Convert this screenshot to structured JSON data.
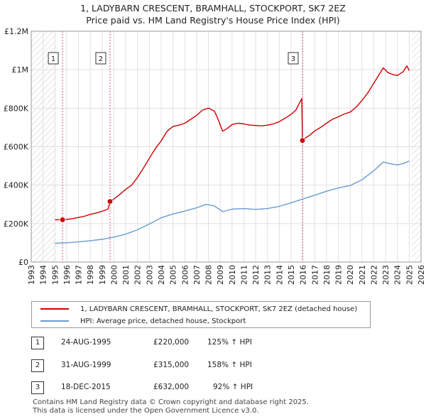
{
  "title_line1": "1, LADYBARN CRESCENT, BRAMHALL, STOCKPORT, SK7 2EZ",
  "title_line2": "Price paid vs. HM Land Registry's House Price Index (HPI)",
  "chart_data": {
    "type": "line",
    "xlim": [
      1993,
      2026
    ],
    "ylim": [
      0,
      1200000
    ],
    "y_ticks": [
      {
        "value": 0,
        "label": "£0"
      },
      {
        "value": 200000,
        "label": "£200K"
      },
      {
        "value": 400000,
        "label": "£400K"
      },
      {
        "value": 600000,
        "label": "£600K"
      },
      {
        "value": 800000,
        "label": "£800K"
      },
      {
        "value": 1000000,
        "label": "£1M"
      },
      {
        "value": 1200000,
        "label": "£1.2M"
      }
    ],
    "x_ticks": [
      1993,
      1994,
      1995,
      1996,
      1997,
      1998,
      1999,
      2000,
      2001,
      2002,
      2003,
      2004,
      2005,
      2006,
      2007,
      2008,
      2009,
      2010,
      2011,
      2012,
      2013,
      2014,
      2015,
      2016,
      2017,
      2018,
      2019,
      2020,
      2021,
      2022,
      2023,
      2024,
      2025,
      2026
    ],
    "grid": true,
    "hatched_ranges": [
      [
        1993,
        1995.1
      ],
      [
        2025.2,
        2026
      ]
    ],
    "series": [
      {
        "name": "1, LADYBARN CRESCENT, BRAMHALL, STOCKPORT, SK7 2EZ (detached house)",
        "color": "#cc0000",
        "points": [
          [
            1995.0,
            220000
          ],
          [
            1995.65,
            220000
          ],
          [
            1996.0,
            222000
          ],
          [
            1996.5,
            226000
          ],
          [
            1997.0,
            232000
          ],
          [
            1997.5,
            238000
          ],
          [
            1998.0,
            248000
          ],
          [
            1998.5,
            255000
          ],
          [
            1999.0,
            264000
          ],
          [
            1999.5,
            275000
          ],
          [
            1999.67,
            315000
          ],
          [
            2000.0,
            328000
          ],
          [
            2000.5,
            352000
          ],
          [
            2001.0,
            378000
          ],
          [
            2001.5,
            400000
          ],
          [
            2002.0,
            440000
          ],
          [
            2002.5,
            488000
          ],
          [
            2003.0,
            540000
          ],
          [
            2003.5,
            590000
          ],
          [
            2004.0,
            630000
          ],
          [
            2004.5,
            680000
          ],
          [
            2005.0,
            705000
          ],
          [
            2005.5,
            712000
          ],
          [
            2006.0,
            722000
          ],
          [
            2006.5,
            742000
          ],
          [
            2007.0,
            762000
          ],
          [
            2007.5,
            790000
          ],
          [
            2008.0,
            800000
          ],
          [
            2008.5,
            785000
          ],
          [
            2008.8,
            745000
          ],
          [
            2009.2,
            680000
          ],
          [
            2009.6,
            695000
          ],
          [
            2010.0,
            715000
          ],
          [
            2010.5,
            722000
          ],
          [
            2011.0,
            718000
          ],
          [
            2011.5,
            712000
          ],
          [
            2012.0,
            710000
          ],
          [
            2012.5,
            708000
          ],
          [
            2013.0,
            712000
          ],
          [
            2013.5,
            718000
          ],
          [
            2014.0,
            730000
          ],
          [
            2014.5,
            748000
          ],
          [
            2015.0,
            768000
          ],
          [
            2015.4,
            790000
          ],
          [
            2015.9,
            850000
          ],
          [
            2015.96,
            632000
          ],
          [
            2016.2,
            645000
          ],
          [
            2016.6,
            660000
          ],
          [
            2017.0,
            682000
          ],
          [
            2017.5,
            700000
          ],
          [
            2018.0,
            722000
          ],
          [
            2018.5,
            742000
          ],
          [
            2019.0,
            755000
          ],
          [
            2019.5,
            770000
          ],
          [
            2020.0,
            780000
          ],
          [
            2020.5,
            805000
          ],
          [
            2021.0,
            840000
          ],
          [
            2021.5,
            880000
          ],
          [
            2022.0,
            930000
          ],
          [
            2022.5,
            980000
          ],
          [
            2022.8,
            1010000
          ],
          [
            2023.2,
            985000
          ],
          [
            2023.6,
            975000
          ],
          [
            2024.0,
            970000
          ],
          [
            2024.5,
            990000
          ],
          [
            2024.8,
            1020000
          ],
          [
            2025.0,
            995000
          ]
        ]
      },
      {
        "name": "HPI: Average price, detached house, Stockport",
        "color": "#6b9bd1",
        "points": [
          [
            1995.0,
            98000
          ],
          [
            1996.0,
            100000
          ],
          [
            1997.0,
            105000
          ],
          [
            1998.0,
            111000
          ],
          [
            1999.0,
            118000
          ],
          [
            2000.0,
            130000
          ],
          [
            2001.0,
            145000
          ],
          [
            2002.0,
            168000
          ],
          [
            2003.0,
            198000
          ],
          [
            2004.0,
            230000
          ],
          [
            2005.0,
            250000
          ],
          [
            2006.0,
            265000
          ],
          [
            2007.0,
            282000
          ],
          [
            2007.8,
            300000
          ],
          [
            2008.5,
            292000
          ],
          [
            2009.2,
            262000
          ],
          [
            2010.0,
            275000
          ],
          [
            2011.0,
            278000
          ],
          [
            2012.0,
            274000
          ],
          [
            2013.0,
            278000
          ],
          [
            2014.0,
            290000
          ],
          [
            2015.0,
            308000
          ],
          [
            2016.0,
            328000
          ],
          [
            2017.0,
            348000
          ],
          [
            2018.0,
            368000
          ],
          [
            2019.0,
            385000
          ],
          [
            2020.0,
            398000
          ],
          [
            2021.0,
            428000
          ],
          [
            2022.0,
            475000
          ],
          [
            2022.8,
            520000
          ],
          [
            2023.5,
            510000
          ],
          [
            2024.0,
            505000
          ],
          [
            2024.5,
            512000
          ],
          [
            2025.0,
            525000
          ]
        ]
      }
    ],
    "sales": [
      {
        "num": "1",
        "x": 1995.65,
        "y": 220000,
        "date": "24-AUG-1995",
        "price": "£220,000",
        "hpi": "125% ↑ HPI"
      },
      {
        "num": "2",
        "x": 1999.67,
        "y": 315000,
        "date": "31-AUG-1999",
        "price": "£315,000",
        "hpi": "158% ↑ HPI"
      },
      {
        "num": "3",
        "x": 2015.96,
        "y": 632000,
        "date": "18-DEC-2015",
        "price": "£632,000",
        "hpi": "92% ↑ HPI"
      }
    ]
  },
  "legend": {
    "property_label": "1, LADYBARN CRESCENT, BRAMHALL, STOCKPORT, SK7 2EZ (detached house)",
    "hpi_label": "HPI: Average price, detached house, Stockport"
  },
  "colors": {
    "property": "#cc0000",
    "hpi": "#6b9bd1"
  },
  "footer_line1": "Contains HM Land Registry data © Crown copyright and database right 2025.",
  "footer_line2": "This data is licensed under the Open Government Licence v3.0."
}
